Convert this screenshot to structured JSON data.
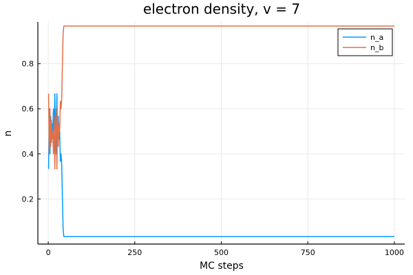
{
  "chart_data": {
    "type": "line",
    "title": "electron density, v = 7",
    "xlabel": "MC steps",
    "ylabel": "n",
    "xlim": [
      -30,
      1030
    ],
    "ylim": [
      0.0,
      0.985
    ],
    "xticks": [
      0,
      250,
      500,
      750,
      1000
    ],
    "yticks": [
      0.2,
      0.4,
      0.6,
      0.8
    ],
    "grid": true,
    "legend_position": "top-right",
    "series": [
      {
        "name": "n_a",
        "color": "#009AFA",
        "x": [
          1,
          3,
          5,
          7,
          9,
          11,
          13,
          15,
          17,
          19,
          21,
          23,
          25,
          27,
          29,
          31,
          33,
          35,
          37,
          39,
          41,
          43,
          45,
          60,
          100,
          200,
          400,
          600,
          800,
          1000
        ],
        "y": [
          0.333,
          0.6,
          0.4,
          0.567,
          0.45,
          0.533,
          0.5,
          0.6,
          0.433,
          0.667,
          0.5,
          0.4,
          0.667,
          0.433,
          0.567,
          0.467,
          0.5,
          0.367,
          0.4,
          0.35,
          0.2,
          0.067,
          0.033,
          0.033,
          0.033,
          0.033,
          0.033,
          0.033,
          0.033,
          0.033
        ]
      },
      {
        "name": "n_b",
        "color": "#E36F47",
        "x": [
          1,
          3,
          5,
          7,
          9,
          11,
          13,
          15,
          17,
          19,
          21,
          23,
          25,
          27,
          29,
          31,
          33,
          35,
          37,
          39,
          41,
          43,
          45,
          60,
          100,
          200,
          400,
          600,
          800,
          1000
        ],
        "y": [
          0.667,
          0.4,
          0.6,
          0.433,
          0.55,
          0.467,
          0.5,
          0.4,
          0.567,
          0.333,
          0.5,
          0.6,
          0.333,
          0.567,
          0.433,
          0.533,
          0.5,
          0.633,
          0.6,
          0.65,
          0.8,
          0.933,
          0.967,
          0.967,
          0.967,
          0.967,
          0.967,
          0.967,
          0.967,
          0.967
        ]
      }
    ]
  }
}
